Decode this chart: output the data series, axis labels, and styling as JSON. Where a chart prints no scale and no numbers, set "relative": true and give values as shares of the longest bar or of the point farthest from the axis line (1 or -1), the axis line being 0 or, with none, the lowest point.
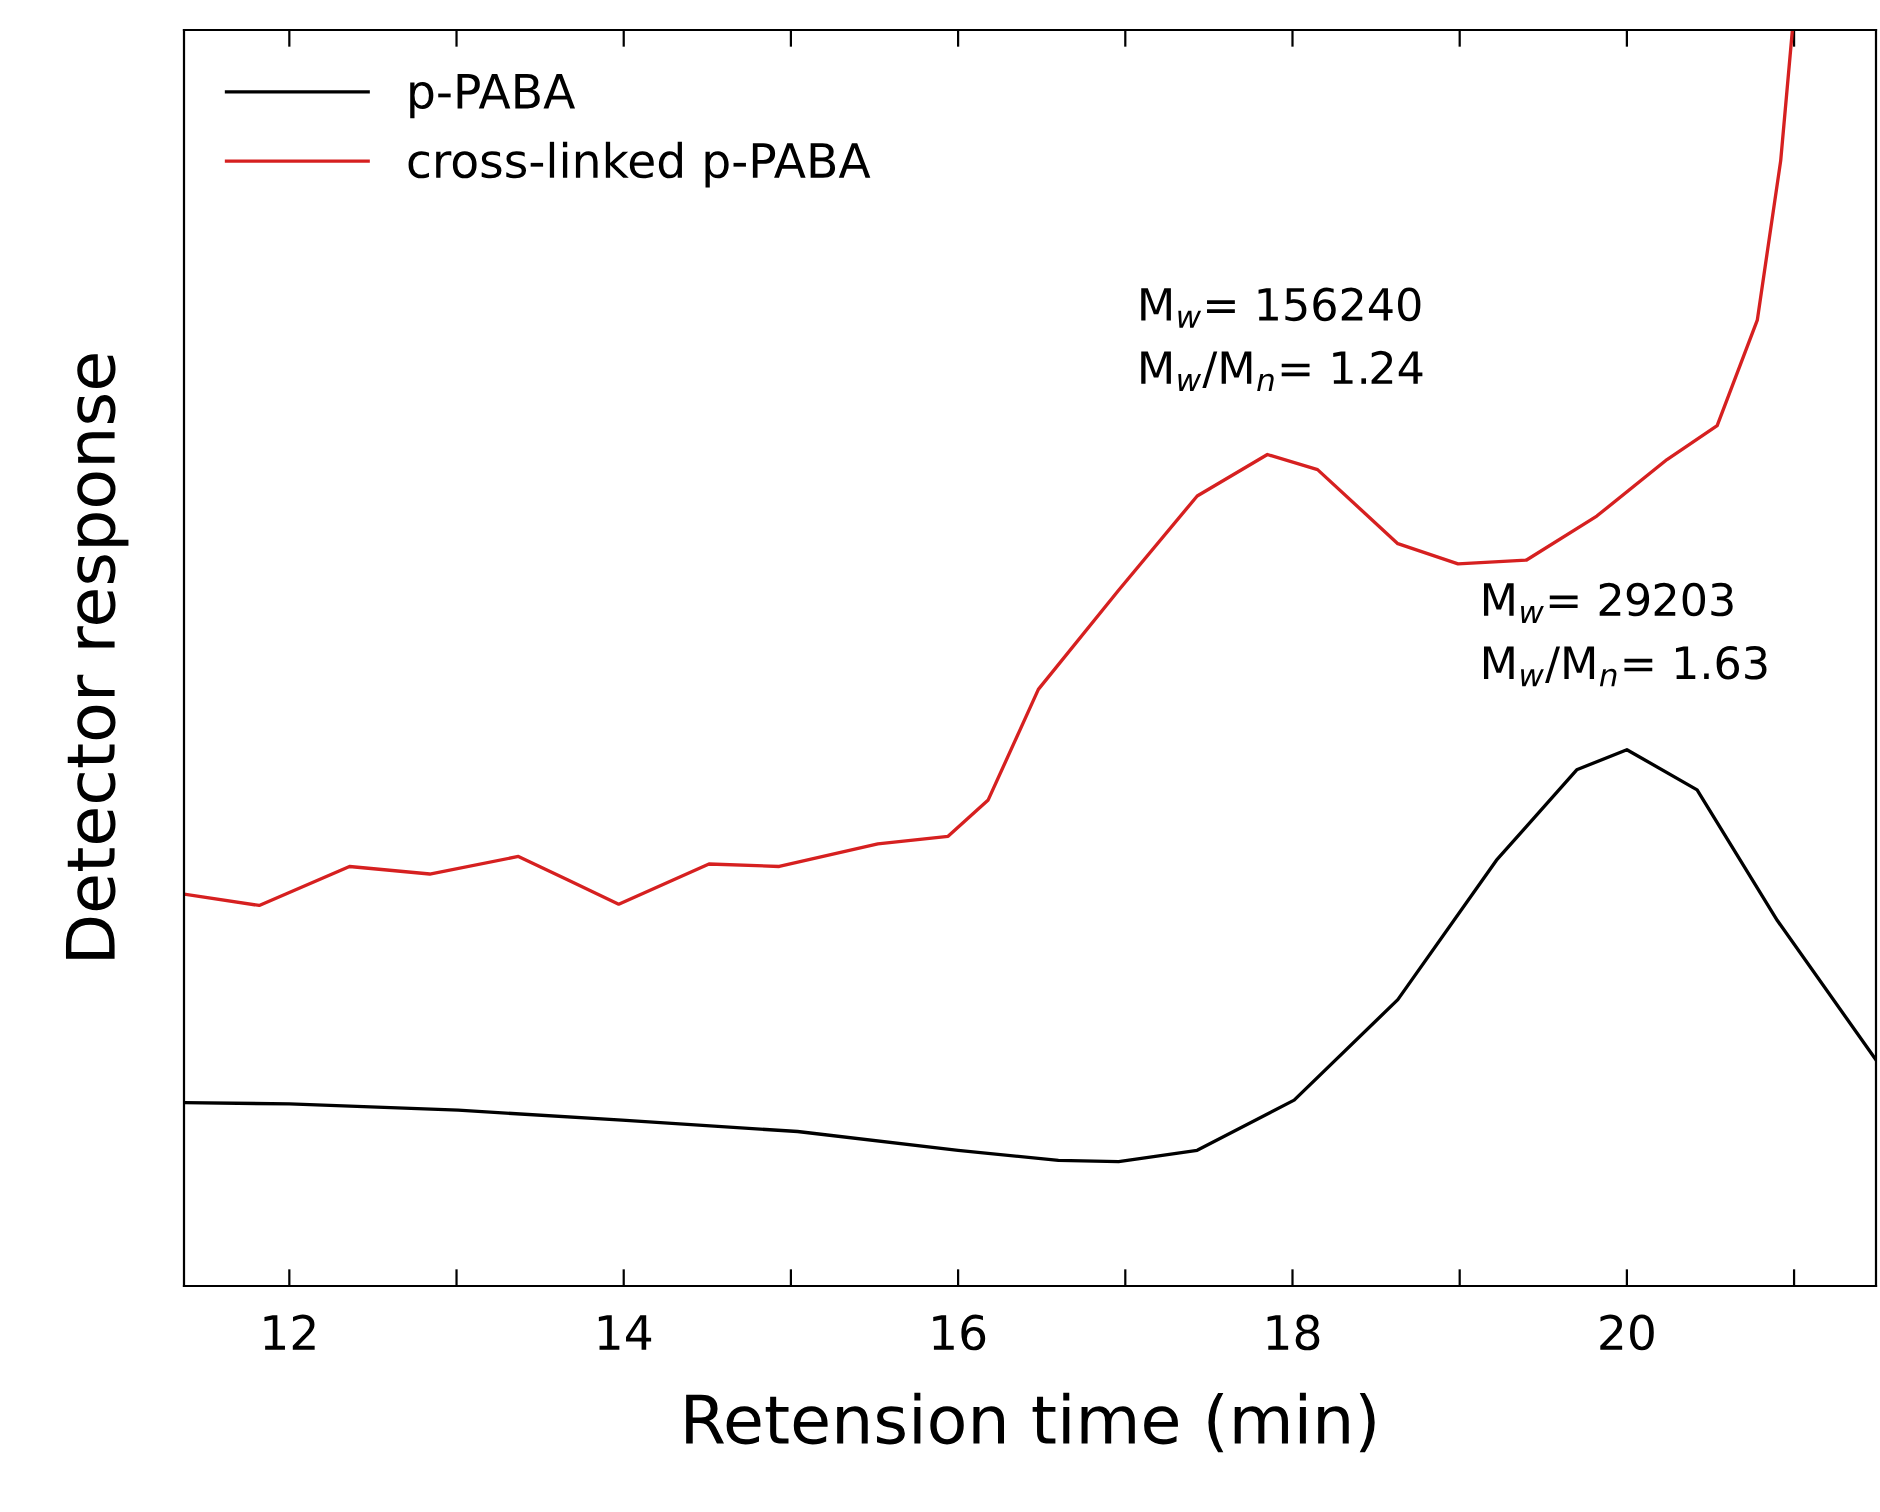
{
  "chart_data": {
    "type": "line",
    "relative": true,
    "xlabel": "Retension time (min)",
    "ylabel": "Detector response",
    "xlim": [
      11.37,
      21.49
    ],
    "xticks": [
      12,
      {
        "value": 13,
        "label": null
      },
      14,
      {
        "value": 15,
        "label": null
      },
      16,
      {
        "value": 17,
        "label": null
      },
      18,
      {
        "value": 19,
        "label": null
      },
      20,
      {
        "value": 21,
        "label": null
      }
    ],
    "legend": "top left",
    "grid": false,
    "series": [
      {
        "name": "p-PABA",
        "color": "#000000",
        "x": [
          11.37,
          12,
          13.01,
          13.99,
          15.04,
          16.0,
          16.6,
          16.96,
          17.43,
          18.01,
          18.63,
          19.22,
          19.7,
          20.0,
          20.42,
          20.9,
          21.49
        ],
        "values": [
          0.146,
          0.145,
          0.14,
          0.132,
          0.123,
          0.108,
          0.1,
          0.099,
          0.108,
          0.148,
          0.228,
          0.339,
          0.411,
          0.427,
          0.395,
          0.291,
          0.18
        ]
      },
      {
        "name": "cross-linked p-PABA",
        "color": "#d62020",
        "x": [
          11.37,
          11.82,
          12.36,
          12.84,
          13.37,
          13.67,
          13.97,
          14.51,
          14.93,
          15.52,
          15.94,
          16.18,
          16.48,
          16.96,
          17.43,
          17.85,
          18.15,
          18.63,
          18.99,
          19.4,
          19.82,
          20.24,
          20.54,
          20.78,
          20.92,
          20.99
        ],
        "values": [
          0.312,
          0.303,
          0.334,
          0.328,
          0.342,
          0.323,
          0.304,
          0.336,
          0.334,
          0.352,
          0.358,
          0.387,
          0.475,
          0.554,
          0.629,
          0.662,
          0.65,
          0.591,
          0.575,
          0.578,
          0.613,
          0.658,
          0.685,
          0.769,
          0.896,
          1.0
        ]
      }
    ],
    "annotations": [
      {
        "text": "M$_{w}$= 156240\nM$_{w}$/M$_{n}$= 1.24",
        "x": 17.9,
        "y": 0.662
      },
      {
        "text": "M$_{w}$= 29203\nM$_{w}$/M$_{n}$= 1.63",
        "x": 19.95,
        "y": 0.427
      }
    ]
  }
}
